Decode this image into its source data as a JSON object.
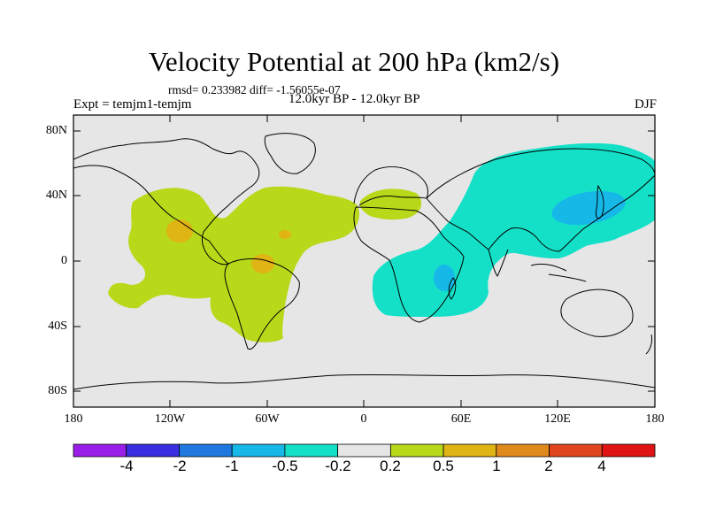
{
  "title": "Velocity Potential at 200 hPa (km2/s)",
  "stats": "rmsd= 0.233982 diff= -1.56055e-07",
  "expt": "Expt = temjm1-temjm",
  "period": "12.0kyr BP - 12.0kyr BP",
  "season": "DJF",
  "lat_labels": [
    "80N",
    "40N",
    "0",
    "40S",
    "80S"
  ],
  "lon_labels": [
    "180",
    "120W",
    "60W",
    "0",
    "60E",
    "120E",
    "180"
  ],
  "colorbar": {
    "labels": [
      "-4",
      "-2",
      "-1",
      "-0.5",
      "-0.2",
      "0.2",
      "0.5",
      "1",
      "2",
      "4"
    ],
    "colors": [
      "#9b1ee8",
      "#3a2fe0",
      "#1e78e0",
      "#16b8e8",
      "#14e0c8",
      "#e6e6e6",
      "#b8d81a",
      "#e0b414",
      "#e08a1e",
      "#e0461e",
      "#e01414"
    ]
  }
}
